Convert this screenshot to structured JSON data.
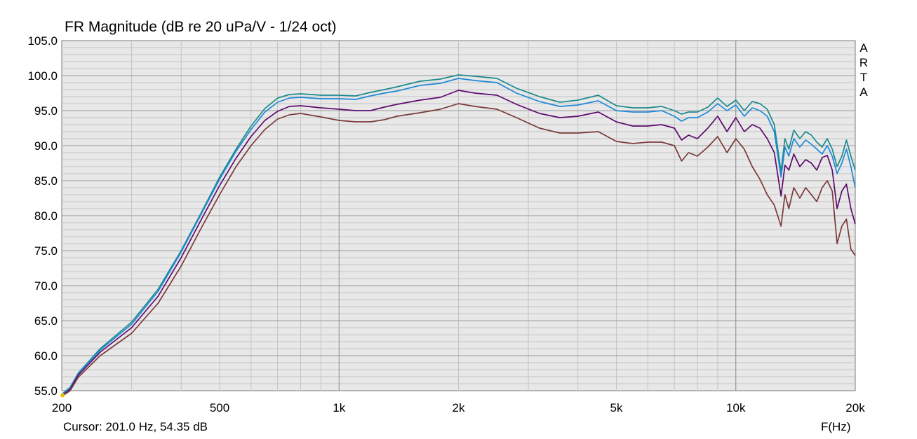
{
  "chart_data": {
    "type": "line",
    "title": "FR Magnitude (dB re 20 uPa/V - 1/24 oct)",
    "xlabel": "F(Hz)",
    "ylabel": "",
    "xscale": "log",
    "xlim": [
      200,
      20000
    ],
    "ylim": [
      55,
      105
    ],
    "grid": true,
    "x_tick_labels": [
      {
        "value": 200,
        "label": "200"
      },
      {
        "value": 500,
        "label": "500"
      },
      {
        "value": 1000,
        "label": "1k"
      },
      {
        "value": 2000,
        "label": "2k"
      },
      {
        "value": 5000,
        "label": "5k"
      },
      {
        "value": 10000,
        "label": "10k"
      },
      {
        "value": 20000,
        "label": "20k"
      }
    ],
    "y_ticks": [
      55,
      60,
      65,
      70,
      75,
      80,
      85,
      90,
      95,
      100,
      105
    ],
    "y_tick_labels": [
      "55.0",
      "60.0",
      "65.0",
      "70.0",
      "75.0",
      "80.0",
      "85.0",
      "90.0",
      "95.0",
      "100.0",
      "105.0"
    ],
    "series": [
      {
        "color": "#1b8a8a",
        "x": [
          200,
          210,
          220,
          250,
          300,
          350,
          400,
          450,
          500,
          550,
          600,
          650,
          700,
          750,
          800,
          900,
          1000,
          1100,
          1200,
          1300,
          1400,
          1600,
          1800,
          2000,
          2200,
          2500,
          2800,
          3200,
          3600,
          4000,
          4500,
          5000,
          5500,
          6000,
          6500,
          7000,
          7300,
          7600,
          8000,
          8500,
          9000,
          9500,
          10000,
          10500,
          11000,
          11500,
          12000,
          12500,
          13000,
          13300,
          13600,
          14000,
          14500,
          15000,
          15500,
          16000,
          16500,
          17000,
          17500,
          18000,
          18500,
          19000,
          19500,
          20000
        ],
        "values": [
          54.5,
          55.5,
          57.5,
          61.0,
          64.8,
          69.5,
          75.0,
          80.5,
          85.5,
          89.5,
          92.8,
          95.3,
          96.8,
          97.3,
          97.4,
          97.2,
          97.2,
          97.1,
          97.6,
          98.0,
          98.4,
          99.2,
          99.5,
          100.1,
          99.9,
          99.6,
          98.2,
          97.0,
          96.2,
          96.5,
          97.2,
          95.7,
          95.4,
          95.4,
          95.6,
          95.0,
          94.5,
          94.8,
          94.8,
          95.5,
          96.8,
          95.6,
          96.5,
          95.0,
          96.3,
          96.0,
          95.2,
          93.0,
          86.3,
          91.0,
          89.5,
          92.2,
          91.0,
          92.0,
          91.5,
          90.5,
          89.8,
          91.0,
          89.5,
          87.0,
          88.5,
          90.8,
          88.5,
          86.5
        ]
      },
      {
        "color": "#1e88d8",
        "x": [
          200,
          210,
          220,
          250,
          300,
          350,
          400,
          450,
          500,
          550,
          600,
          650,
          700,
          750,
          800,
          900,
          1000,
          1100,
          1200,
          1300,
          1400,
          1600,
          1800,
          2000,
          2200,
          2500,
          2800,
          3200,
          3600,
          4000,
          4500,
          5000,
          5500,
          6000,
          6500,
          7000,
          7300,
          7600,
          8000,
          8500,
          9000,
          9500,
          10000,
          10500,
          11000,
          11500,
          12000,
          12500,
          13000,
          13300,
          13600,
          14000,
          14500,
          15000,
          15500,
          16000,
          16500,
          17000,
          17500,
          18000,
          18500,
          19000,
          19500,
          20000
        ],
        "values": [
          54.5,
          55.4,
          57.4,
          60.8,
          64.5,
          69.2,
          74.8,
          80.3,
          85.2,
          89.2,
          92.3,
          94.8,
          96.2,
          96.8,
          96.9,
          96.7,
          96.7,
          96.6,
          97.1,
          97.5,
          97.8,
          98.6,
          98.9,
          99.6,
          99.3,
          99.0,
          97.5,
          96.3,
          95.6,
          95.8,
          96.4,
          95.0,
          94.8,
          94.8,
          95.0,
          94.2,
          93.5,
          94.0,
          94.0,
          94.8,
          96.0,
          95.0,
          95.8,
          94.2,
          95.4,
          95.0,
          94.2,
          92.0,
          85.5,
          89.8,
          88.5,
          91.0,
          89.8,
          90.8,
          90.2,
          89.5,
          88.8,
          90.0,
          88.5,
          86.0,
          87.5,
          89.5,
          87.0,
          84.0
        ]
      },
      {
        "color": "#5e0a6e",
        "x": [
          200,
          210,
          220,
          250,
          300,
          350,
          400,
          450,
          500,
          550,
          600,
          650,
          700,
          750,
          800,
          900,
          1000,
          1100,
          1200,
          1300,
          1400,
          1600,
          1800,
          2000,
          2200,
          2500,
          2800,
          3200,
          3600,
          4000,
          4500,
          5000,
          5500,
          6000,
          6500,
          7000,
          7300,
          7600,
          8000,
          8500,
          9000,
          9500,
          10000,
          10500,
          11000,
          11500,
          12000,
          12500,
          13000,
          13300,
          13600,
          14000,
          14500,
          15000,
          15500,
          16000,
          16500,
          17000,
          17500,
          18000,
          18500,
          19000,
          19500,
          20000
        ],
        "values": [
          54.3,
          55.2,
          57.2,
          60.5,
          64.0,
          68.5,
          74.0,
          79.5,
          84.3,
          88.2,
          91.3,
          93.6,
          94.9,
          95.6,
          95.7,
          95.4,
          95.2,
          95.0,
          95.0,
          95.5,
          95.9,
          96.5,
          96.9,
          97.9,
          97.5,
          97.2,
          95.9,
          94.6,
          94.0,
          94.2,
          94.8,
          93.4,
          92.8,
          92.8,
          93.0,
          92.5,
          90.8,
          91.5,
          91.0,
          92.5,
          94.2,
          92.0,
          94.0,
          92.0,
          93.0,
          92.5,
          91.0,
          89.0,
          82.8,
          87.2,
          86.5,
          88.8,
          87.0,
          88.0,
          87.5,
          86.5,
          88.3,
          88.6,
          86.5,
          81.0,
          83.5,
          84.5,
          81.0,
          78.8
        ]
      },
      {
        "color": "#7a3a38",
        "x": [
          200,
          210,
          220,
          250,
          300,
          350,
          400,
          450,
          500,
          550,
          600,
          650,
          700,
          750,
          800,
          900,
          1000,
          1100,
          1200,
          1300,
          1400,
          1600,
          1800,
          2000,
          2200,
          2500,
          2800,
          3200,
          3600,
          4000,
          4500,
          5000,
          5500,
          6000,
          6500,
          7000,
          7300,
          7600,
          8000,
          8500,
          9000,
          9500,
          10000,
          10500,
          11000,
          11500,
          12000,
          12500,
          13000,
          13300,
          13600,
          14000,
          14500,
          15000,
          15500,
          16000,
          16500,
          17000,
          17500,
          18000,
          18500,
          19000,
          19500,
          20000
        ],
        "values": [
          54.2,
          55.0,
          56.9,
          60.0,
          63.2,
          67.5,
          72.8,
          78.3,
          83.0,
          87.0,
          90.0,
          92.3,
          93.8,
          94.4,
          94.6,
          94.1,
          93.6,
          93.4,
          93.4,
          93.7,
          94.2,
          94.7,
          95.2,
          96.0,
          95.6,
          95.2,
          94.0,
          92.5,
          91.8,
          91.8,
          92.0,
          90.6,
          90.3,
          90.5,
          90.5,
          90.0,
          87.8,
          89.0,
          88.5,
          89.8,
          91.3,
          89.0,
          91.0,
          89.5,
          87.0,
          85.2,
          83.0,
          81.5,
          78.5,
          83.0,
          81.0,
          84.0,
          82.5,
          84.0,
          83.0,
          82.0,
          84.0,
          85.0,
          83.5,
          76.0,
          78.5,
          79.5,
          75.2,
          74.3
        ]
      }
    ],
    "cursor_readout": "Cursor: 201.0 Hz, 54.35 dB",
    "vertical_brand_letters": [
      "A",
      "R",
      "T",
      "A"
    ]
  }
}
